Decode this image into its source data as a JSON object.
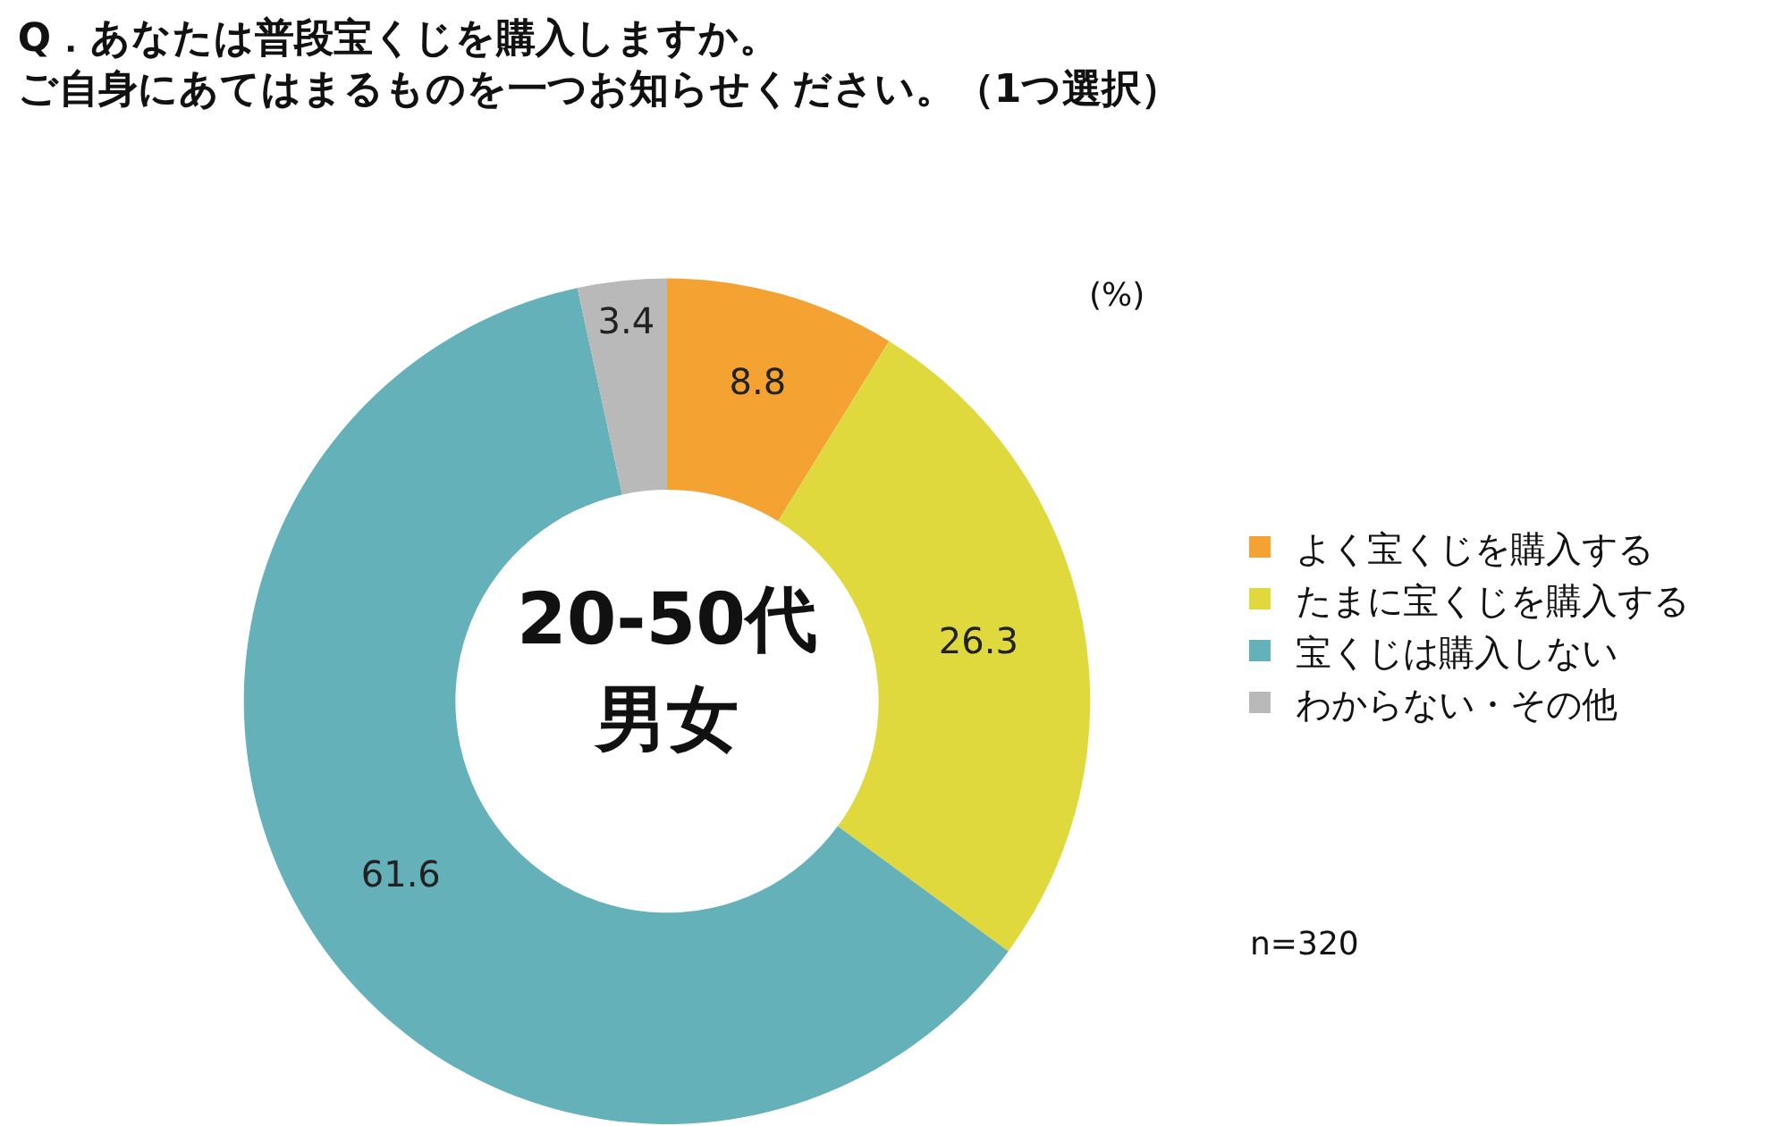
{
  "chart_data": {
    "type": "donut",
    "title": "Q．あなたは普段宝くじを購入しますか。",
    "subtitle": "ご自身にあてはまるものを一つお知らせください。（1つ選択）",
    "categories": [
      "よく宝くじを購入する",
      "たまに宝くじを購入する",
      "宝くじは購入しない",
      "わからない・その他"
    ],
    "values": [
      8.8,
      26.3,
      61.6,
      3.4
    ],
    "colors": [
      "#f4a232",
      "#dfd93e",
      "#64b1ba",
      "#b9b9b9"
    ],
    "data_labels": true,
    "legend": "right",
    "annotations": [
      "(%)",
      "n=320",
      "20-50代",
      "男女"
    ]
  }
}
